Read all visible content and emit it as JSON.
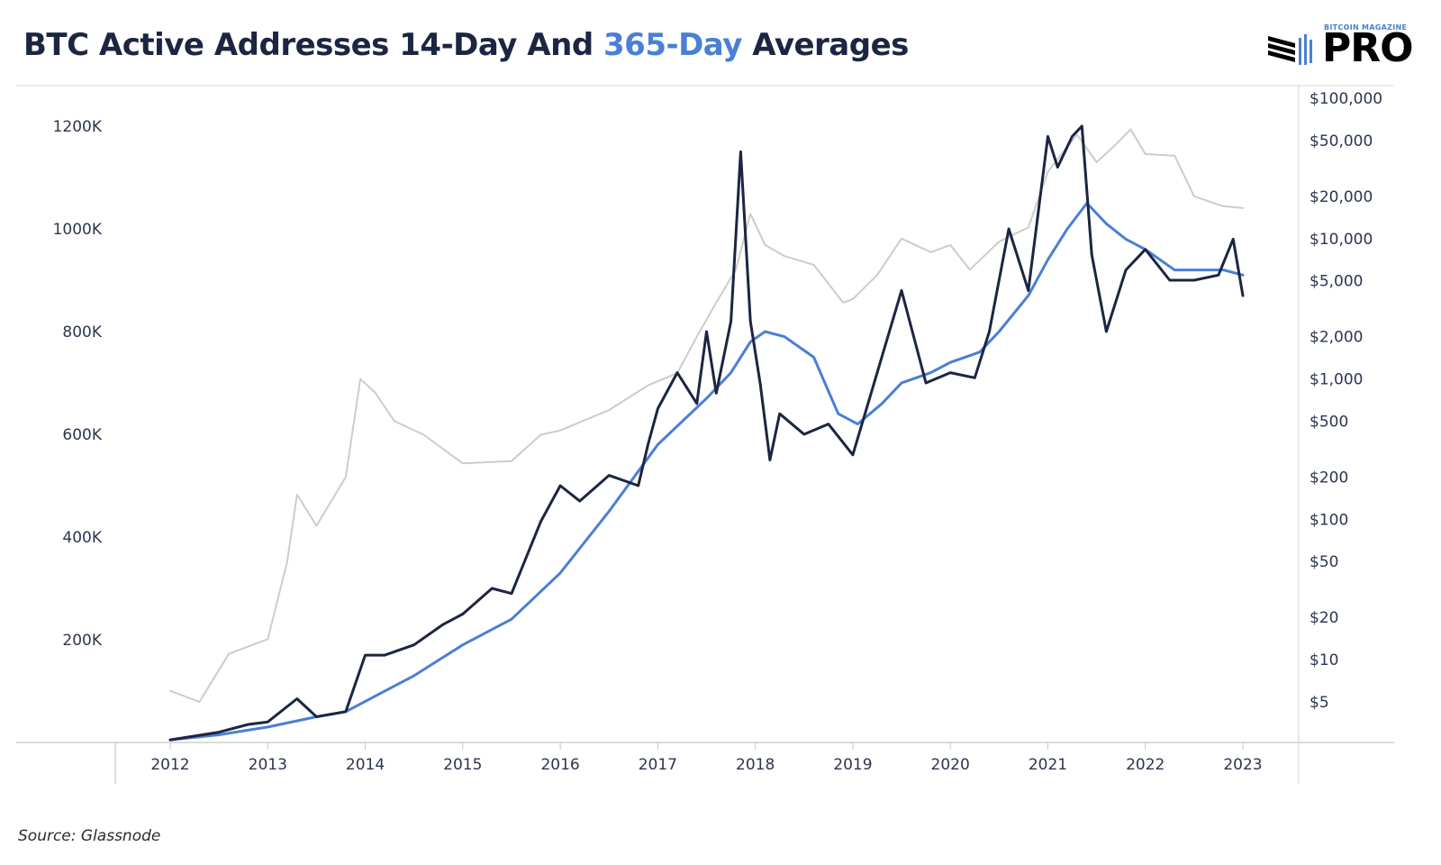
{
  "title": {
    "part1": "BTC Active Addresses 14-Day And ",
    "highlight": "365-Day",
    "part2": " Averages"
  },
  "logo": {
    "small": "BITCOIN MAGAZINE",
    "big": "PRO"
  },
  "source": "Source: Glassnode",
  "colors": {
    "title": "#1c2541",
    "highlight": "#4a7fd4",
    "avg14": "#1c2541",
    "avg365": "#4a7fd4",
    "price": "#cccccc"
  },
  "chart_data": {
    "type": "line",
    "title": "BTC Active Addresses 14-Day And 365-Day Averages",
    "x_ticks": [
      "2012",
      "2013",
      "2014",
      "2015",
      "2016",
      "2017",
      "2018",
      "2019",
      "2020",
      "2021",
      "2022",
      "2023"
    ],
    "xlim": [
      2012,
      2023
    ],
    "y_left": {
      "ticks": [
        "200K",
        "400K",
        "600K",
        "800K",
        "1000K",
        "1200K"
      ],
      "tick_values": [
        200000,
        400000,
        600000,
        800000,
        1000000,
        1200000
      ],
      "range": [
        0,
        1200000
      ]
    },
    "y_right": {
      "scale": "log",
      "ticks": [
        "$5",
        "$10",
        "$20",
        "$50",
        "$100",
        "$200",
        "$500",
        "$1,000",
        "$2,000",
        "$5,000",
        "$10,000",
        "$20,000",
        "$50,000",
        "$100,000"
      ],
      "tick_values": [
        5,
        10,
        20,
        50,
        100,
        200,
        500,
        1000,
        2000,
        5000,
        10000,
        20000,
        50000,
        100000
      ]
    },
    "grid": false,
    "series": [
      {
        "key": "avg14",
        "axis": "left",
        "x": [
          2012.0,
          2012.5,
          2012.8,
          2013.0,
          2013.3,
          2013.5,
          2013.8,
          2014.0,
          2014.2,
          2014.5,
          2014.8,
          2015.0,
          2015.3,
          2015.5,
          2015.8,
          2016.0,
          2016.2,
          2016.5,
          2016.8,
          2016.9,
          2017.0,
          2017.2,
          2017.4,
          2017.5,
          2017.6,
          2017.75,
          2017.85,
          2017.95,
          2018.05,
          2018.15,
          2018.25,
          2018.5,
          2018.75,
          2019.0,
          2019.25,
          2019.5,
          2019.75,
          2020.0,
          2020.25,
          2020.4,
          2020.6,
          2020.8,
          2021.0,
          2021.1,
          2021.25,
          2021.35,
          2021.45,
          2021.6,
          2021.8,
          2022.0,
          2022.25,
          2022.5,
          2022.75,
          2022.9,
          2023.0
        ],
        "y": [
          5000,
          20000,
          35000,
          40000,
          85000,
          50000,
          60000,
          170000,
          170000,
          190000,
          230000,
          250000,
          300000,
          290000,
          430000,
          500000,
          470000,
          520000,
          500000,
          580000,
          650000,
          720000,
          660000,
          800000,
          680000,
          820000,
          1150000,
          820000,
          700000,
          550000,
          640000,
          600000,
          620000,
          560000,
          720000,
          880000,
          700000,
          720000,
          710000,
          800000,
          1000000,
          880000,
          1180000,
          1120000,
          1180000,
          1200000,
          950000,
          800000,
          920000,
          960000,
          900000,
          900000,
          910000,
          980000,
          870000
        ]
      },
      {
        "key": "avg365",
        "axis": "left",
        "x": [
          2012.0,
          2012.5,
          2013.0,
          2013.5,
          2013.8,
          2014.0,
          2014.5,
          2015.0,
          2015.5,
          2016.0,
          2016.5,
          2017.0,
          2017.5,
          2017.75,
          2017.95,
          2018.1,
          2018.3,
          2018.6,
          2018.85,
          2019.05,
          2019.3,
          2019.5,
          2019.8,
          2020.0,
          2020.3,
          2020.5,
          2020.8,
          2021.0,
          2021.2,
          2021.4,
          2021.6,
          2021.8,
          2022.0,
          2022.3,
          2022.6,
          2022.8,
          2023.0
        ],
        "y": [
          5000,
          15000,
          30000,
          50000,
          60000,
          80000,
          130000,
          190000,
          240000,
          330000,
          450000,
          580000,
          670000,
          720000,
          780000,
          800000,
          790000,
          750000,
          640000,
          620000,
          660000,
          700000,
          720000,
          740000,
          760000,
          800000,
          870000,
          940000,
          1000000,
          1050000,
          1010000,
          980000,
          960000,
          920000,
          920000,
          920000,
          910000
        ]
      },
      {
        "key": "price",
        "axis": "right",
        "x": [
          2012.0,
          2012.3,
          2012.6,
          2013.0,
          2013.2,
          2013.3,
          2013.5,
          2013.8,
          2013.95,
          2014.1,
          2014.3,
          2014.6,
          2015.0,
          2015.5,
          2015.8,
          2016.0,
          2016.5,
          2016.9,
          2017.2,
          2017.4,
          2017.6,
          2017.8,
          2017.95,
          2018.1,
          2018.3,
          2018.6,
          2018.9,
          2019.0,
          2019.25,
          2019.5,
          2019.8,
          2020.0,
          2020.2,
          2020.5,
          2020.8,
          2021.0,
          2021.3,
          2021.5,
          2021.7,
          2021.85,
          2022.0,
          2022.3,
          2022.5,
          2022.8,
          2023.0
        ],
        "y": [
          6,
          5,
          11,
          14,
          50,
          150,
          90,
          200,
          1000,
          800,
          500,
          400,
          250,
          260,
          400,
          430,
          600,
          900,
          1100,
          2000,
          3500,
          6000,
          15000,
          9000,
          7500,
          6500,
          3500,
          3700,
          5500,
          10000,
          8000,
          9000,
          6000,
          9500,
          12000,
          30000,
          55000,
          35000,
          47000,
          60000,
          40000,
          39000,
          20000,
          17000,
          16500
        ]
      }
    ]
  }
}
